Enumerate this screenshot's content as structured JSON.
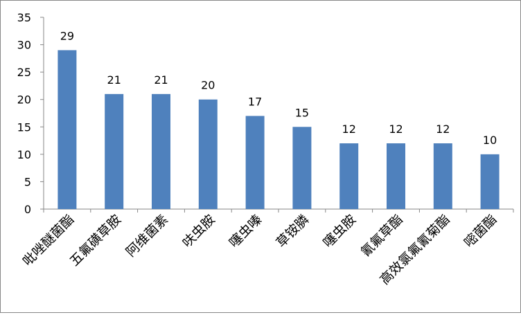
{
  "chart_data": {
    "type": "bar",
    "title": "",
    "xlabel": "",
    "ylabel": "",
    "categories": [
      "吡唑醚菌酯",
      "五氟磺草胺",
      "阿维菌素",
      "呋虫胺",
      "噻虫嗪",
      "草铵膦",
      "噻虫胺",
      "氰氟草酯",
      "高效氯氟氰菊酯",
      "嘧菌酯"
    ],
    "values": [
      29,
      21,
      21,
      20,
      17,
      15,
      12,
      12,
      12,
      10
    ],
    "ylim": [
      0,
      35
    ],
    "yticks": [
      0,
      5,
      10,
      15,
      20,
      25,
      30,
      35
    ],
    "grid": false,
    "legend": "none",
    "data_labels": true,
    "bar_color": "#4F81BD",
    "axis_color": "#868686",
    "text_color": "#000000"
  }
}
